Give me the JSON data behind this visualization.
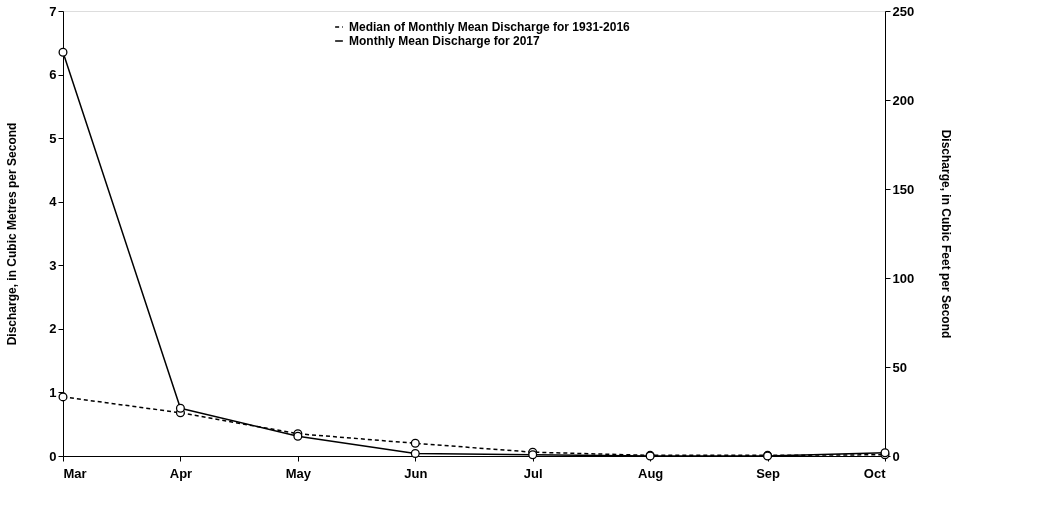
{
  "chart_data": {
    "type": "line",
    "categories": [
      "Mar",
      "Apr",
      "May",
      "Jun",
      "Jul",
      "Aug",
      "Sep",
      "Oct"
    ],
    "series": [
      {
        "name": "Median of Monthly Mean Discharge for 1931-2016",
        "color": "#000000",
        "line_style": "dashed",
        "values": [
          0.93,
          0.68,
          0.35,
          0.2,
          0.06,
          0.01,
          0.01,
          0.02
        ]
      },
      {
        "name": "Monthly Mean Discharge for 2017",
        "color": "#000000",
        "line_style": "solid",
        "values": [
          6.35,
          0.75,
          0.31,
          0.04,
          0.02,
          0.0,
          0.0,
          0.05
        ]
      }
    ],
    "ylabel": "Discharge, in Cubic Metres per Second",
    "y2label": "Discharge, in Cubic Feet per Second",
    "ylim": [
      0,
      7
    ],
    "yticks": [
      0,
      1,
      2,
      3,
      4,
      5,
      6,
      7
    ],
    "y2lim": [
      0,
      250
    ],
    "y2ticks": [
      0,
      50,
      100,
      150,
      200,
      250
    ],
    "marker": "circle",
    "grid": false,
    "legend": "top"
  }
}
